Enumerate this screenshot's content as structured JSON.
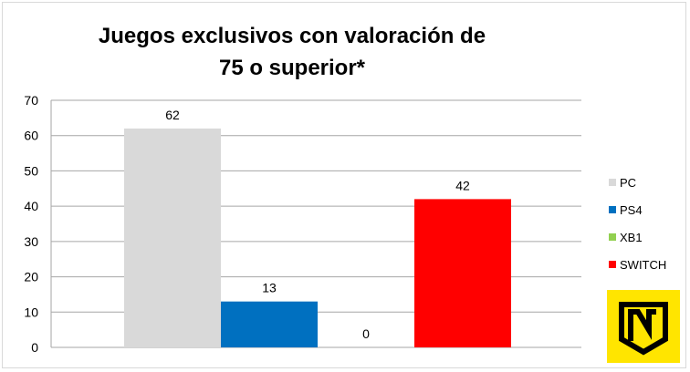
{
  "chart_data": {
    "type": "bar",
    "title": "Juegos exclusivos con valoración de 75 o superior*",
    "categories": [
      "PC",
      "PS4",
      "XB1",
      "SWITCH"
    ],
    "values": [
      62,
      13,
      0,
      42
    ],
    "colors": [
      "#d9d9d9",
      "#0070c0",
      "#92d050",
      "#ff0000"
    ],
    "ylim": [
      0,
      70
    ],
    "yticks": [
      0,
      10,
      20,
      30,
      40,
      50,
      60,
      70
    ],
    "grid": true,
    "legend_position": "right"
  },
  "logo": {
    "icon": "n-logo-icon",
    "color": "#ffe500"
  }
}
